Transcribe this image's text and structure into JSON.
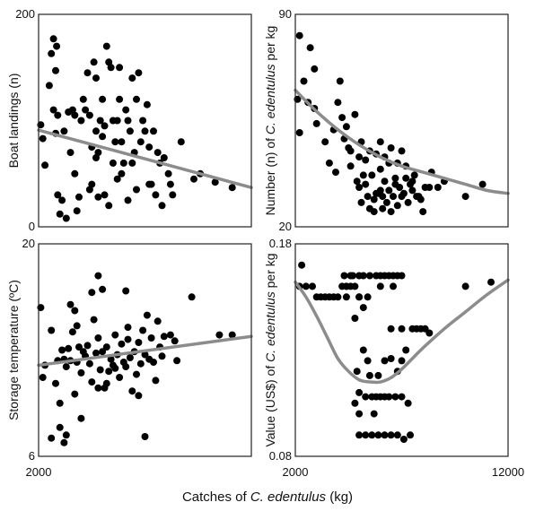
{
  "figure": {
    "xlabel_prefix": "Catches of ",
    "xlabel_species": "C. edentulus",
    "xlabel_unit": " (kg)"
  },
  "colors": {
    "points": "#000000",
    "trend": "#8c8c8c"
  },
  "chart_data": [
    {
      "type": "scatter",
      "ylabel_parts": [
        {
          "t": "Boat landings (n)",
          "i": false
        }
      ],
      "xlim": [
        2000,
        12000
      ],
      "ylim": [
        0,
        200
      ],
      "x_ticks": [
        "",
        ""
      ],
      "y_ticks": [
        "0",
        "200"
      ],
      "trend": {
        "kind": "line",
        "x": [
          2000,
          12000
        ],
        "y": [
          91,
          37
        ]
      },
      "points": [
        [
          2100,
          96
        ],
        [
          2200,
          83
        ],
        [
          2300,
          58
        ],
        [
          2500,
          133
        ],
        [
          2600,
          163
        ],
        [
          2700,
          177
        ],
        [
          2800,
          147
        ],
        [
          2850,
          170
        ],
        [
          2900,
          105
        ],
        [
          2800,
          88
        ],
        [
          2700,
          110
        ],
        [
          2900,
          30
        ],
        [
          3000,
          12
        ],
        [
          3100,
          25
        ],
        [
          3200,
          90
        ],
        [
          3300,
          8
        ],
        [
          3400,
          108
        ],
        [
          3500,
          70
        ],
        [
          3600,
          110
        ],
        [
          3700,
          105
        ],
        [
          3800,
          15
        ],
        [
          3900,
          28
        ],
        [
          4000,
          100
        ],
        [
          4100,
          120
        ],
        [
          4200,
          110
        ],
        [
          4300,
          145
        ],
        [
          4400,
          105
        ],
        [
          4500,
          75
        ],
        [
          4600,
          155
        ],
        [
          4700,
          140
        ],
        [
          4700,
          90
        ],
        [
          4700,
          65
        ],
        [
          4800,
          70
        ],
        [
          4900,
          100
        ],
        [
          5000,
          120
        ],
        [
          5100,
          95
        ],
        [
          5100,
          30
        ],
        [
          5200,
          170
        ],
        [
          5300,
          155
        ],
        [
          5400,
          150
        ],
        [
          5500,
          100
        ],
        [
          5500,
          60
        ],
        [
          5600,
          80
        ],
        [
          5700,
          100
        ],
        [
          5800,
          150
        ],
        [
          5800,
          120
        ],
        [
          5900,
          80
        ],
        [
          5900,
          50
        ],
        [
          6000,
          60
        ],
        [
          6100,
          110
        ],
        [
          6200,
          100
        ],
        [
          6300,
          90
        ],
        [
          6400,
          140
        ],
        [
          6400,
          60
        ],
        [
          6500,
          70
        ],
        [
          6600,
          120
        ],
        [
          6700,
          145
        ],
        [
          6800,
          80
        ],
        [
          6900,
          100
        ],
        [
          7000,
          90
        ],
        [
          7100,
          115
        ],
        [
          7200,
          75
        ],
        [
          7300,
          40
        ],
        [
          7400,
          90
        ],
        [
          7500,
          30
        ],
        [
          7600,
          70
        ],
        [
          7700,
          60
        ],
        [
          7800,
          20
        ],
        [
          7900,
          65
        ],
        [
          8100,
          50
        ],
        [
          8200,
          40
        ],
        [
          8300,
          30
        ],
        [
          8700,
          80
        ],
        [
          9300,
          45
        ],
        [
          9600,
          50
        ],
        [
          10300,
          42
        ],
        [
          11100,
          37
        ],
        [
          3700,
          50
        ],
        [
          4800,
          28
        ],
        [
          5300,
          20
        ],
        [
          4400,
          35
        ],
        [
          6600,
          35
        ],
        [
          7200,
          40
        ],
        [
          6200,
          25
        ],
        [
          5700,
          45
        ],
        [
          4500,
          40
        ],
        [
          5000,
          85
        ]
      ]
    },
    {
      "type": "scatter",
      "ylabel_parts": [
        {
          "t": "Number (n) of ",
          "i": false
        },
        {
          "t": "C. edentulus",
          "i": true
        },
        {
          "t": " per kg",
          "i": false
        }
      ],
      "xlim": [
        2000,
        12000
      ],
      "ylim": [
        20,
        90
      ],
      "x_ticks": [
        "",
        ""
      ],
      "y_ticks": [
        "20",
        "90"
      ],
      "trend": {
        "kind": "curve",
        "x": [
          2000,
          3000,
          4000,
          5000,
          6000,
          7000,
          8000,
          9000,
          10000,
          11000,
          12000
        ],
        "y": [
          65,
          58,
          52,
          47,
          43,
          40,
          38,
          36,
          34,
          32,
          31
        ]
      },
      "points": [
        [
          2200,
          83
        ],
        [
          2700,
          79
        ],
        [
          2100,
          62
        ],
        [
          2200,
          51
        ],
        [
          2400,
          68
        ],
        [
          2600,
          61
        ],
        [
          2900,
          59
        ],
        [
          3000,
          54
        ],
        [
          3400,
          48
        ],
        [
          3600,
          41
        ],
        [
          3800,
          52
        ],
        [
          4000,
          61
        ],
        [
          4100,
          68
        ],
        [
          4200,
          56
        ],
        [
          4300,
          49
        ],
        [
          4400,
          53
        ],
        [
          4500,
          46
        ],
        [
          4600,
          40
        ],
        [
          4800,
          57
        ],
        [
          4900,
          35
        ],
        [
          5000,
          43
        ],
        [
          5000,
          33
        ],
        [
          5100,
          28
        ],
        [
          5100,
          48
        ],
        [
          5200,
          37
        ],
        [
          5300,
          34
        ],
        [
          5400,
          30
        ],
        [
          5500,
          26
        ],
        [
          5600,
          37
        ],
        [
          5700,
          29
        ],
        [
          5800,
          31
        ],
        [
          5900,
          31
        ],
        [
          6000,
          39
        ],
        [
          6000,
          32
        ],
        [
          6100,
          30
        ],
        [
          6200,
          35
        ],
        [
          6300,
          28
        ],
        [
          6400,
          32
        ],
        [
          6500,
          25
        ],
        [
          6600,
          30
        ],
        [
          6700,
          34
        ],
        [
          6800,
          27
        ],
        [
          6900,
          33
        ],
        [
          7000,
          30
        ],
        [
          7100,
          31
        ],
        [
          7200,
          36
        ],
        [
          7300,
          28
        ],
        [
          7400,
          34
        ],
        [
          7500,
          32
        ],
        [
          7600,
          37
        ],
        [
          7700,
          30
        ],
        [
          7800,
          30
        ],
        [
          7900,
          29
        ],
        [
          8000,
          25
        ],
        [
          8100,
          33
        ],
        [
          8300,
          33
        ],
        [
          8400,
          38
        ],
        [
          8700,
          33
        ],
        [
          9000,
          35
        ],
        [
          10000,
          30
        ],
        [
          10800,
          34
        ],
        [
          5500,
          45
        ],
        [
          6000,
          48
        ],
        [
          6500,
          46
        ],
        [
          7000,
          45
        ],
        [
          5800,
          44
        ],
        [
          6200,
          43
        ],
        [
          6800,
          41
        ],
        [
          7200,
          40
        ],
        [
          5300,
          42
        ],
        [
          6700,
          36
        ],
        [
          7500,
          35
        ],
        [
          2900,
          72
        ],
        [
          6100,
          26
        ],
        [
          3900,
          38
        ],
        [
          4600,
          45
        ],
        [
          5700,
          25
        ],
        [
          6400,
          41
        ]
      ]
    },
    {
      "type": "scatter",
      "ylabel_parts": [
        {
          "t": "Storage temperature (ºC)",
          "i": false
        }
      ],
      "xlim": [
        2000,
        12000
      ],
      "ylim": [
        6,
        20
      ],
      "x_ticks": [
        "2000",
        ""
      ],
      "y_ticks": [
        "6",
        "20"
      ],
      "trend": {
        "kind": "line",
        "x": [
          2000,
          12000
        ],
        "y": [
          12.0,
          13.9
        ]
      },
      "points": [
        [
          2100,
          15.8
        ],
        [
          2200,
          11.2
        ],
        [
          2300,
          12.0
        ],
        [
          2600,
          14.3
        ],
        [
          2800,
          10.8
        ],
        [
          2900,
          12.3
        ],
        [
          3000,
          9.5
        ],
        [
          3100,
          13.0
        ],
        [
          3200,
          12.4
        ],
        [
          3300,
          11.9
        ],
        [
          3400,
          13.1
        ],
        [
          3500,
          12.3
        ],
        [
          3600,
          14.2
        ],
        [
          3700,
          10.1
        ],
        [
          3800,
          12.2
        ],
        [
          3900,
          13.2
        ],
        [
          4000,
          11.5
        ],
        [
          4200,
          12.6
        ],
        [
          4300,
          13.3
        ],
        [
          4400,
          12.1
        ],
        [
          4500,
          10.9
        ],
        [
          4600,
          15.0
        ],
        [
          4700,
          12.8
        ],
        [
          4800,
          13.8
        ],
        [
          4900,
          11.7
        ],
        [
          5000,
          12.9
        ],
        [
          5100,
          10.5
        ],
        [
          5200,
          13.2
        ],
        [
          5300,
          11.6
        ],
        [
          5400,
          12.4
        ],
        [
          5500,
          12.0
        ],
        [
          5600,
          14.0
        ],
        [
          5700,
          12.7
        ],
        [
          5800,
          11.2
        ],
        [
          5900,
          13.4
        ],
        [
          6000,
          12.2
        ],
        [
          6100,
          11.9
        ],
        [
          6200,
          14.5
        ],
        [
          6300,
          12.5
        ],
        [
          6400,
          10.3
        ],
        [
          6500,
          12.9
        ],
        [
          6600,
          11.4
        ],
        [
          6700,
          13.5
        ],
        [
          6800,
          12.1
        ],
        [
          6900,
          14.3
        ],
        [
          7000,
          12.7
        ],
        [
          7100,
          15.3
        ],
        [
          7200,
          12.4
        ],
        [
          7300,
          13.8
        ],
        [
          7400,
          12.2
        ],
        [
          7500,
          11.0
        ],
        [
          7600,
          14.9
        ],
        [
          7700,
          13.2
        ],
        [
          7800,
          12.6
        ],
        [
          7900,
          13.9
        ],
        [
          8200,
          14.0
        ],
        [
          8400,
          13.6
        ],
        [
          8500,
          12.3
        ],
        [
          9200,
          16.5
        ],
        [
          10500,
          14.0
        ],
        [
          11100,
          14.0
        ],
        [
          4500,
          16.8
        ],
        [
          5000,
          17.0
        ],
        [
          3500,
          16.0
        ],
        [
          6100,
          16.9
        ],
        [
          4000,
          8.5
        ],
        [
          3000,
          7.9
        ],
        [
          4800,
          17.9
        ],
        [
          2600,
          7.2
        ],
        [
          3300,
          7.4
        ],
        [
          3200,
          6.9
        ],
        [
          6700,
          10.0
        ],
        [
          7000,
          7.3
        ],
        [
          4800,
          10.5
        ],
        [
          5200,
          10.8
        ],
        [
          3700,
          15.6
        ],
        [
          6200,
          13.7
        ],
        [
          5600,
          11.8
        ],
        [
          4100,
          12.9
        ],
        [
          3800,
          14.6
        ]
      ]
    },
    {
      "type": "scatter",
      "ylabel_parts": [
        {
          "t": "Value (US$) of ",
          "i": false
        },
        {
          "t": "C. edentulus",
          "i": true
        },
        {
          "t": " per kg",
          "i": false
        }
      ],
      "xlim": [
        2000,
        12000
      ],
      "ylim": [
        0.08,
        0.18
      ],
      "x_ticks": [
        "2000",
        "12000"
      ],
      "y_ticks": [
        "0.08",
        "0.18"
      ],
      "trend": {
        "kind": "curve",
        "x": [
          2000,
          2500,
          3000,
          3500,
          4000,
          4500,
          5000,
          5500,
          6000,
          6500,
          7000,
          7500,
          8000,
          9000,
          10000,
          11000,
          12000
        ],
        "y": [
          0.162,
          0.155,
          0.146,
          0.136,
          0.126,
          0.12,
          0.116,
          0.115,
          0.115,
          0.117,
          0.121,
          0.126,
          0.131,
          0.14,
          0.148,
          0.156,
          0.163
        ]
      },
      "points": [
        [
          2300,
          0.17
        ],
        [
          2200,
          0.16
        ],
        [
          2500,
          0.16
        ],
        [
          2800,
          0.16
        ],
        [
          3000,
          0.155
        ],
        [
          3200,
          0.155
        ],
        [
          3400,
          0.155
        ],
        [
          3600,
          0.155
        ],
        [
          3800,
          0.155
        ],
        [
          4000,
          0.155
        ],
        [
          4200,
          0.16
        ],
        [
          4400,
          0.16
        ],
        [
          4600,
          0.16
        ],
        [
          4800,
          0.16
        ],
        [
          4300,
          0.165
        ],
        [
          4600,
          0.165
        ],
        [
          5000,
          0.165
        ],
        [
          5200,
          0.165
        ],
        [
          4400,
          0.16
        ],
        [
          5500,
          0.165
        ],
        [
          5800,
          0.165
        ],
        [
          6000,
          0.165
        ],
        [
          6200,
          0.165
        ],
        [
          6400,
          0.165
        ],
        [
          6600,
          0.165
        ],
        [
          6800,
          0.165
        ],
        [
          7000,
          0.165
        ],
        [
          5000,
          0.155
        ],
        [
          5200,
          0.15
        ],
        [
          4800,
          0.145
        ],
        [
          5200,
          0.13
        ],
        [
          4900,
          0.12
        ],
        [
          5400,
          0.125
        ],
        [
          6500,
          0.14
        ],
        [
          7000,
          0.14
        ],
        [
          7200,
          0.13
        ],
        [
          7500,
          0.14
        ],
        [
          7700,
          0.14
        ],
        [
          7900,
          0.14
        ],
        [
          8100,
          0.14
        ],
        [
          5000,
          0.11
        ],
        [
          5000,
          0.1
        ],
        [
          5600,
          0.108
        ],
        [
          5800,
          0.108
        ],
        [
          6000,
          0.108
        ],
        [
          6200,
          0.108
        ],
        [
          6400,
          0.108
        ],
        [
          6700,
          0.108
        ],
        [
          7000,
          0.108
        ],
        [
          7300,
          0.105
        ],
        [
          5000,
          0.09
        ],
        [
          5300,
          0.09
        ],
        [
          5600,
          0.09
        ],
        [
          5900,
          0.09
        ],
        [
          6200,
          0.09
        ],
        [
          6500,
          0.09
        ],
        [
          6800,
          0.09
        ],
        [
          7100,
          0.088
        ],
        [
          7400,
          0.09
        ],
        [
          5900,
          0.118
        ],
        [
          6500,
          0.126
        ],
        [
          4400,
          0.155
        ],
        [
          6000,
          0.16
        ],
        [
          6600,
          0.16
        ],
        [
          6200,
          0.125
        ],
        [
          7000,
          0.125
        ],
        [
          8300,
          0.138
        ],
        [
          10000,
          0.16
        ],
        [
          11200,
          0.162
        ],
        [
          5300,
          0.108
        ],
        [
          5500,
          0.118
        ],
        [
          6800,
          0.12
        ],
        [
          4800,
          0.105
        ],
        [
          5700,
          0.1
        ],
        [
          5000,
          0.155
        ],
        [
          4700,
          0.165
        ],
        [
          5400,
          0.155
        ]
      ]
    }
  ]
}
